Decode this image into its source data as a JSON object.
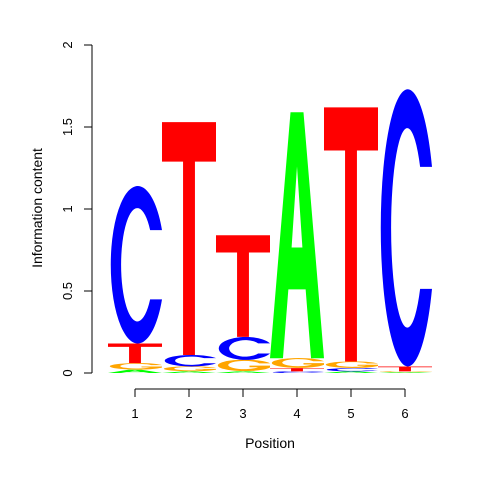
{
  "chart_data": {
    "type": "sequence-logo",
    "ylabel": "Information content",
    "xlabel": "Position",
    "ylim": [
      0,
      2
    ],
    "yticks": [
      "0",
      "0.5",
      "1",
      "1.5",
      "2"
    ],
    "categories": [
      "1",
      "2",
      "3",
      "4",
      "5",
      "6"
    ],
    "colors": {
      "A": "#00ff00",
      "C": "#0000ff",
      "G": "#ffa500",
      "T": "#ff0000"
    },
    "positions": [
      {
        "position": "1",
        "stack": [
          {
            "letter": "A",
            "height": 0.02
          },
          {
            "letter": "G",
            "height": 0.04
          },
          {
            "letter": "T",
            "height": 0.12
          },
          {
            "letter": "C",
            "height": 0.96
          }
        ]
      },
      {
        "position": "2",
        "stack": [
          {
            "letter": "A",
            "height": 0.01
          },
          {
            "letter": "G",
            "height": 0.03
          },
          {
            "letter": "C",
            "height": 0.07
          },
          {
            "letter": "T",
            "height": 1.42
          }
        ]
      },
      {
        "position": "3",
        "stack": [
          {
            "letter": "A",
            "height": 0.01
          },
          {
            "letter": "G",
            "height": 0.07
          },
          {
            "letter": "C",
            "height": 0.14
          },
          {
            "letter": "T",
            "height": 0.62
          }
        ]
      },
      {
        "position": "4",
        "stack": [
          {
            "letter": "C",
            "height": 0.01
          },
          {
            "letter": "T",
            "height": 0.02
          },
          {
            "letter": "G",
            "height": 0.06
          },
          {
            "letter": "A",
            "height": 1.5
          }
        ]
      },
      {
        "position": "5",
        "stack": [
          {
            "letter": "A",
            "height": 0.01
          },
          {
            "letter": "C",
            "height": 0.02
          },
          {
            "letter": "G",
            "height": 0.04
          },
          {
            "letter": "T",
            "height": 1.55
          }
        ]
      },
      {
        "position": "6",
        "stack": [
          {
            "letter": "A",
            "height": 0.005
          },
          {
            "letter": "G",
            "height": 0.005
          },
          {
            "letter": "T",
            "height": 0.03
          },
          {
            "letter": "C",
            "height": 1.69
          }
        ]
      }
    ]
  }
}
